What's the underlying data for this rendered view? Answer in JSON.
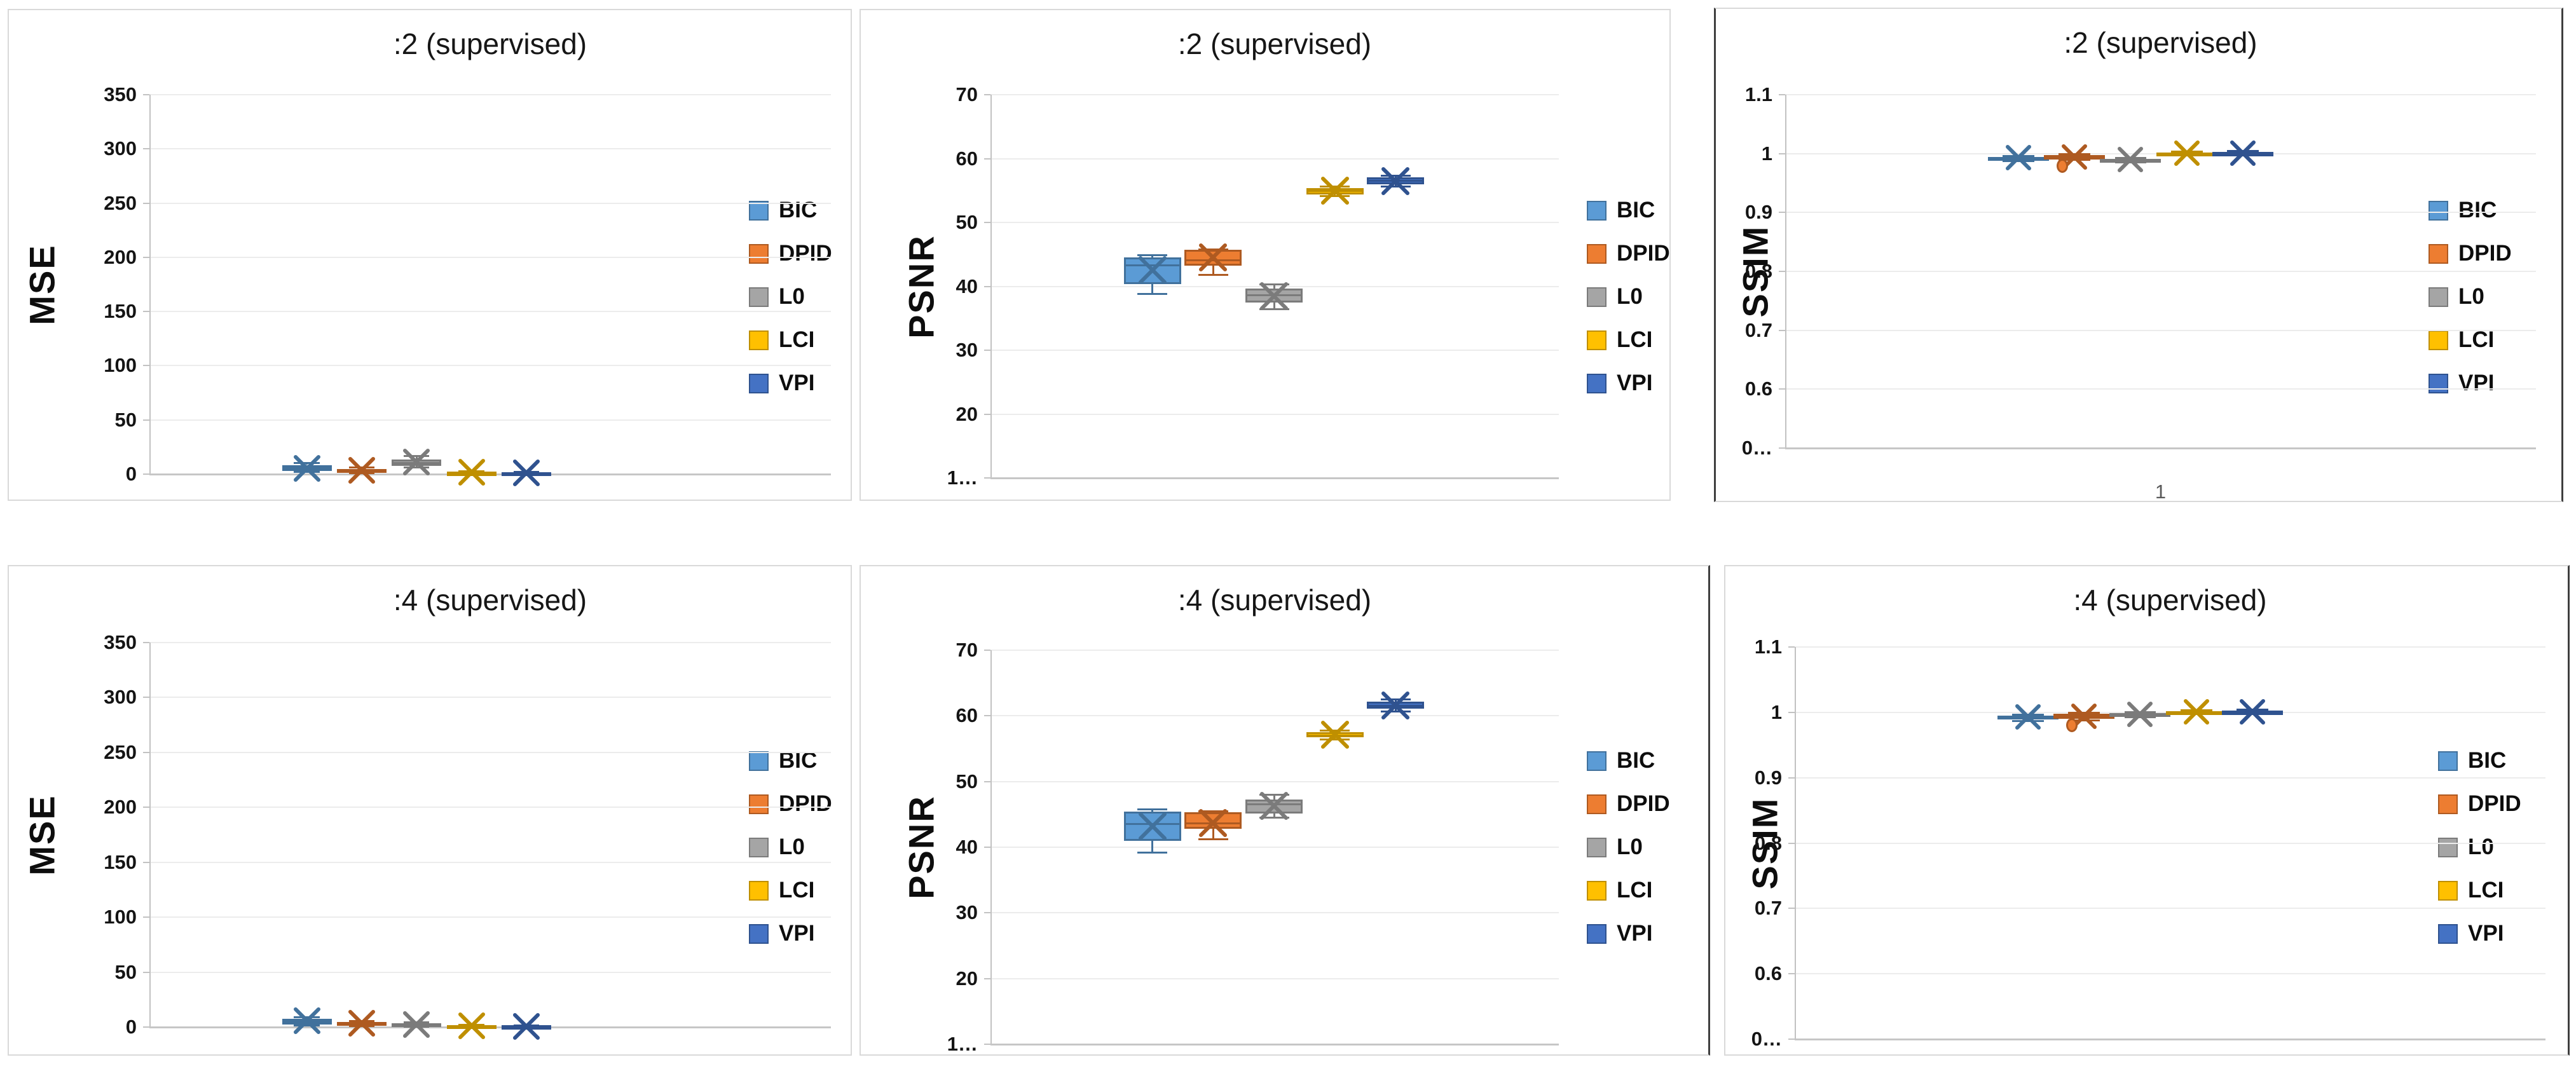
{
  "page": {
    "background": "#ffffff"
  },
  "legend": {
    "items": [
      {
        "label": "BIC",
        "color": "#5B9BD5",
        "border": "#41719C"
      },
      {
        "label": "DPID",
        "color": "#ED7D31",
        "border": "#AE5A21"
      },
      {
        "label": "L0",
        "color": "#A5A5A5",
        "border": "#7B7B7B"
      },
      {
        "label": "LCI",
        "color": "#FFC000",
        "border": "#BF8F00"
      },
      {
        "label": "VPI",
        "color": "#4472C4",
        "border": "#2F528F"
      }
    ]
  },
  "chart_data": [
    {
      "type": "box",
      "title": ":2 (supervised)",
      "ylabel": "MSE",
      "ylim": [
        0,
        350
      ],
      "ytick_values": [
        350,
        300,
        250,
        200,
        150,
        100,
        50,
        0
      ],
      "ytick_labels": [
        "350",
        "300",
        "250",
        "200",
        "150",
        "100",
        "50",
        "0"
      ],
      "xlabel": "",
      "grid": true,
      "legend_position": "right",
      "categories": [
        "BIC",
        "DPID",
        "L0",
        "LCI",
        "VPI"
      ],
      "series": [
        {
          "name": "BIC",
          "whisker_low": 2,
          "q1": 3,
          "median": 5.5,
          "mean": 5.5,
          "q3": 8.5,
          "whisker_high": 10,
          "outliers": []
        },
        {
          "name": "DPID",
          "whisker_low": 1,
          "q1": 2,
          "median": 3.2,
          "mean": 3.5,
          "q3": 4.5,
          "whisker_high": 6,
          "outliers": []
        },
        {
          "name": "L0",
          "whisker_low": 6,
          "q1": 7.5,
          "median": 10.5,
          "mean": 11,
          "q3": 13.5,
          "whisker_high": 16.5,
          "outliers": []
        },
        {
          "name": "LCI",
          "whisker_low": 0.5,
          "q1": 0.8,
          "median": 1.2,
          "mean": 1.5,
          "q3": 1.8,
          "whisker_high": 2.5,
          "outliers": []
        },
        {
          "name": "VPI",
          "whisker_low": 0.3,
          "q1": 0.6,
          "median": 1.0,
          "mean": 1.2,
          "q3": 1.5,
          "whisker_high": 2,
          "outliers": []
        }
      ]
    },
    {
      "type": "box",
      "title": ":2 (supervised)",
      "ylabel": "PSNR",
      "ylim": [
        10,
        70
      ],
      "ytick_values": [
        70,
        60,
        50,
        40,
        30,
        20,
        10
      ],
      "ytick_labels": [
        "70",
        "60",
        "50",
        "40",
        "30",
        "20",
        "1…"
      ],
      "xlabel": "",
      "grid": true,
      "legend_position": "right",
      "categories": [
        "BIC",
        "DPID",
        "L0",
        "LCI",
        "VPI"
      ],
      "series": [
        {
          "name": "BIC",
          "whisker_low": 38.8,
          "q1": 40.3,
          "median": 43.3,
          "mean": 42.5,
          "q3": 44.5,
          "whisker_high": 44.9,
          "outliers": []
        },
        {
          "name": "DPID",
          "whisker_low": 41.8,
          "q1": 43.2,
          "median": 44.1,
          "mean": 44.5,
          "q3": 45.7,
          "whisker_high": 45.8,
          "outliers": []
        },
        {
          "name": "L0",
          "whisker_low": 36.4,
          "q1": 37.5,
          "median": 38.6,
          "mean": 38.5,
          "q3": 39.7,
          "whisker_high": 40.3,
          "outliers": []
        },
        {
          "name": "LCI",
          "whisker_low": 54.1,
          "q1": 54.4,
          "median": 54.9,
          "mean": 55.0,
          "q3": 55.4,
          "whisker_high": 55.6,
          "outliers": []
        },
        {
          "name": "VPI",
          "whisker_low": 55.6,
          "q1": 56.0,
          "median": 56.5,
          "mean": 56.5,
          "q3": 57.1,
          "whisker_high": 57.3,
          "outliers": []
        }
      ]
    },
    {
      "type": "box",
      "title": ":2 (supervised)",
      "ylabel": "SSIM",
      "ylim": [
        0.5,
        1.1
      ],
      "ytick_values": [
        1.1,
        1.0,
        0.9,
        0.8,
        0.7,
        0.6,
        0.5
      ],
      "ytick_labels": [
        "1.1",
        "1",
        "0.9",
        "0.8",
        "0.7",
        "0.6",
        "0…"
      ],
      "xlabel": "1",
      "grid": true,
      "legend_position": "right",
      "categories": [
        "BIC",
        "DPID",
        "L0",
        "LCI",
        "VPI"
      ],
      "series": [
        {
          "name": "BIC",
          "whisker_low": 0.987,
          "q1": 0.989,
          "median": 0.992,
          "mean": 0.993,
          "q3": 0.994,
          "whisker_high": 0.996,
          "outliers": []
        },
        {
          "name": "DPID",
          "whisker_low": 0.989,
          "q1": 0.99,
          "median": 0.993,
          "mean": 0.994,
          "q3": 0.998,
          "whisker_high": 0.999,
          "outliers": [
            0.979
          ]
        },
        {
          "name": "L0",
          "whisker_low": 0.985,
          "q1": 0.987,
          "median": 0.989,
          "mean": 0.99,
          "q3": 0.991,
          "whisker_high": 0.993,
          "outliers": []
        },
        {
          "name": "LCI",
          "whisker_low": 0.997,
          "q1": 0.999,
          "median": 1.0,
          "mean": 1.001,
          "q3": 1.002,
          "whisker_high": 1.003,
          "outliers": []
        },
        {
          "name": "VPI",
          "whisker_low": 0.998,
          "q1": 0.999,
          "median": 1.001,
          "mean": 1.001,
          "q3": 1.002,
          "whisker_high": 1.004,
          "outliers": []
        }
      ]
    },
    {
      "type": "box",
      "title": ":4 (supervised)",
      "ylabel": "MSE",
      "ylim": [
        0,
        350
      ],
      "ytick_values": [
        350,
        300,
        250,
        200,
        150,
        100,
        50,
        0
      ],
      "ytick_labels": [
        "350",
        "300",
        "250",
        "200",
        "150",
        "100",
        "50",
        "0"
      ],
      "xlabel": "",
      "grid": true,
      "legend_position": "right",
      "categories": [
        "BIC",
        "DPID",
        "L0",
        "LCI",
        "VPI"
      ],
      "series": [
        {
          "name": "BIC",
          "whisker_low": 1.5,
          "q1": 2.5,
          "median": 5,
          "mean": 5.5,
          "q3": 7.5,
          "whisker_high": 9,
          "outliers": []
        },
        {
          "name": "DPID",
          "whisker_low": 0.8,
          "q1": 1.5,
          "median": 3,
          "mean": 3.5,
          "q3": 4.5,
          "whisker_high": 5.5,
          "outliers": []
        },
        {
          "name": "L0",
          "whisker_low": 0.5,
          "q1": 1.2,
          "median": 2.2,
          "mean": 2.5,
          "q3": 3.5,
          "whisker_high": 4.5,
          "outliers": []
        },
        {
          "name": "LCI",
          "whisker_low": 0.3,
          "q1": 0.6,
          "median": 1,
          "mean": 1.3,
          "q3": 1.5,
          "whisker_high": 2.2,
          "outliers": []
        },
        {
          "name": "VPI",
          "whisker_low": 0.1,
          "q1": 0.3,
          "median": 0.6,
          "mean": 0.8,
          "q3": 1,
          "whisker_high": 1.4,
          "outliers": []
        }
      ]
    },
    {
      "type": "box",
      "title": ":4 (supervised)",
      "ylabel": "PSNR",
      "ylim": [
        10,
        70
      ],
      "ytick_values": [
        70,
        60,
        50,
        40,
        30,
        20,
        10
      ],
      "ytick_labels": [
        "70",
        "60",
        "50",
        "40",
        "30",
        "20",
        "1…"
      ],
      "xlabel": "",
      "grid": true,
      "legend_position": "right",
      "categories": [
        "BIC",
        "DPID",
        "L0",
        "LCI",
        "VPI"
      ],
      "series": [
        {
          "name": "BIC",
          "whisker_low": 39.2,
          "q1": 41.0,
          "median": 43.5,
          "mean": 43.2,
          "q3": 45.4,
          "whisker_high": 45.8,
          "outliers": []
        },
        {
          "name": "DPID",
          "whisker_low": 41.2,
          "q1": 42.8,
          "median": 43.6,
          "mean": 43.7,
          "q3": 45.3,
          "whisker_high": 45.5,
          "outliers": []
        },
        {
          "name": "L0",
          "whisker_low": 44.5,
          "q1": 45.1,
          "median": 46.5,
          "mean": 46.3,
          "q3": 47.3,
          "whisker_high": 48.0,
          "outliers": []
        },
        {
          "name": "LCI",
          "whisker_low": 56.4,
          "q1": 56.7,
          "median": 57.0,
          "mean": 57.1,
          "q3": 57.5,
          "whisker_high": 57.8,
          "outliers": []
        },
        {
          "name": "VPI",
          "whisker_low": 60.7,
          "q1": 61.1,
          "median": 61.5,
          "mean": 61.6,
          "q3": 62.2,
          "whisker_high": 62.5,
          "outliers": []
        }
      ]
    },
    {
      "type": "box",
      "title": ":4 (supervised)",
      "ylabel": "SSIM",
      "ylim": [
        0.5,
        1.1
      ],
      "ytick_values": [
        1.1,
        1.0,
        0.9,
        0.8,
        0.7,
        0.6,
        0.5
      ],
      "ytick_labels": [
        "1.1",
        "1",
        "0.9",
        "0.8",
        "0.7",
        "0.6",
        "0…"
      ],
      "xlabel": "",
      "grid": true,
      "legend_position": "right",
      "categories": [
        "BIC",
        "DPID",
        "L0",
        "LCI",
        "VPI"
      ],
      "series": [
        {
          "name": "BIC",
          "whisker_low": 0.987,
          "q1": 0.989,
          "median": 0.992,
          "mean": 0.993,
          "q3": 0.995,
          "whisker_high": 0.996,
          "outliers": []
        },
        {
          "name": "DPID",
          "whisker_low": 0.988,
          "q1": 0.99,
          "median": 0.994,
          "mean": 0.994,
          "q3": 0.998,
          "whisker_high": 0.999,
          "outliers": [
            0.98
          ]
        },
        {
          "name": "L0",
          "whisker_low": 0.993,
          "q1": 0.995,
          "median": 0.997,
          "mean": 0.997,
          "q3": 0.999,
          "whisker_high": 1.0,
          "outliers": []
        },
        {
          "name": "LCI",
          "whisker_low": 0.998,
          "q1": 0.999,
          "median": 1.0,
          "mean": 1.001,
          "q3": 1.002,
          "whisker_high": 1.003,
          "outliers": []
        },
        {
          "name": "VPI",
          "whisker_low": 0.999,
          "q1": 1.0,
          "median": 1.001,
          "mean": 1.001,
          "q3": 1.002,
          "whisker_high": 1.004,
          "outliers": []
        }
      ]
    }
  ]
}
